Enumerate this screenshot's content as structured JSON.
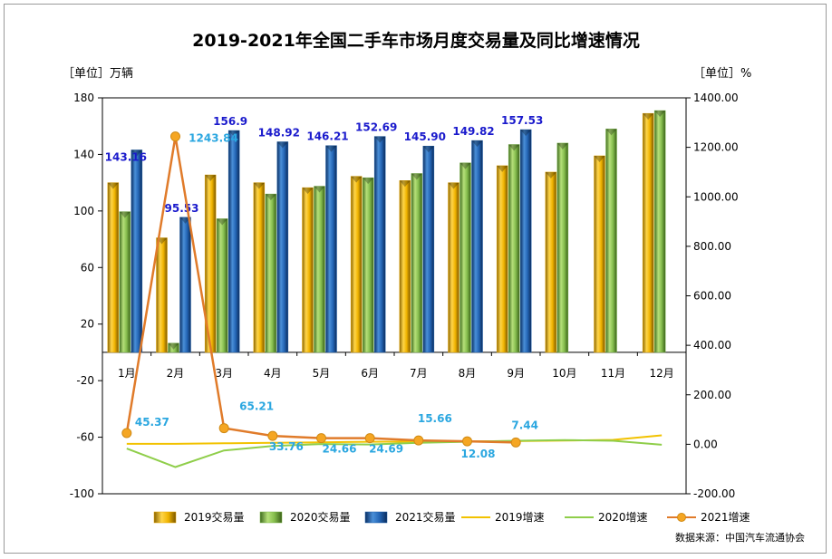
{
  "chart_data": {
    "type": "bar",
    "title": "2019-2021年全国二手车市场月度交易量及同比增速情况",
    "left_unit": "［单位］万辆",
    "right_unit": "［单位］%",
    "source": "数据来源：中国汽车流通协会",
    "categories": [
      "1月",
      "2月",
      "3月",
      "4月",
      "5月",
      "6月",
      "7月",
      "8月",
      "9月",
      "10月",
      "11月",
      "12月"
    ],
    "y_left": {
      "min": -100,
      "max": 180,
      "ticks": [
        -100,
        -60,
        -20,
        20,
        60,
        100,
        140,
        180
      ]
    },
    "y_right": {
      "min": -200,
      "max": 1400,
      "ticks": [
        "-200.00",
        "0.00",
        "200.00",
        "400.00",
        "600.00",
        "800.00",
        "1000.00",
        "1200.00",
        "1400.00"
      ]
    },
    "series": [
      {
        "name": "2019交易量",
        "kind": "bar",
        "axis": "left",
        "color": "#e7a800",
        "values": [
          120.0,
          81.0,
          125.5,
          120.0,
          116.5,
          124.5,
          121.5,
          120.0,
          132.0,
          127.5,
          139.0,
          169.0
        ]
      },
      {
        "name": "2020交易量",
        "kind": "bar",
        "axis": "left",
        "color": "#7ab648",
        "values": [
          99.5,
          6.5,
          94.5,
          112.0,
          117.5,
          123.5,
          126.5,
          134.0,
          147.0,
          148.0,
          158.0,
          171.0
        ]
      },
      {
        "name": "2021交易量",
        "kind": "bar",
        "axis": "left",
        "color": "#1f5fa8",
        "values": [
          143.16,
          95.53,
          156.9,
          148.92,
          146.21,
          152.69,
          145.9,
          149.82,
          157.53,
          null,
          null,
          null
        ],
        "labels": [
          "143.16",
          "95.53",
          "156.9",
          "148.92",
          "146.21",
          "152.69",
          "145.90",
          "149.82",
          "157.53",
          "",
          "",
          ""
        ]
      },
      {
        "name": "2019增速",
        "kind": "line",
        "axis": "right",
        "color": "#f2c200",
        "values": [
          2,
          2,
          4,
          6,
          8,
          10,
          11,
          12,
          13,
          15,
          18,
          36
        ]
      },
      {
        "name": "2020增速",
        "kind": "line",
        "axis": "right",
        "color": "#8fce4a",
        "values": [
          -17,
          -92,
          -25,
          -7,
          1,
          -1,
          6,
          10,
          14,
          17,
          14,
          -2
        ]
      },
      {
        "name": "2021增速",
        "kind": "line",
        "axis": "right",
        "color": "#e07b2a",
        "values": [
          45.37,
          1243.84,
          65.21,
          33.76,
          24.66,
          24.69,
          15.66,
          12.08,
          7.44,
          null,
          null,
          null
        ],
        "labels": [
          "45.37",
          "1243.84",
          "65.21",
          "33.76",
          "24.66",
          "24.69",
          "15.66",
          "12.08",
          "7.44",
          "",
          "",
          ""
        ]
      }
    ],
    "legend_position": "bottom",
    "grid": false
  }
}
